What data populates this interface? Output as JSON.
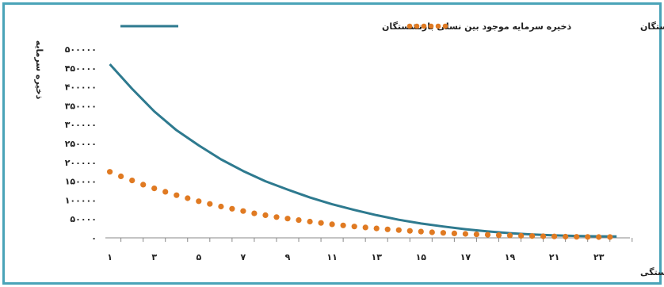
{
  "chart_data": {
    "type": "line",
    "title": "",
    "xlabel": "مدت بازنشستگی",
    "ylabel": "ذخیره سرمایه",
    "x": [
      1,
      2,
      3,
      4,
      5,
      6,
      7,
      8,
      9,
      10,
      11,
      12,
      13,
      14,
      15,
      16,
      17,
      18,
      19,
      20,
      21,
      22,
      23,
      24
    ],
    "x_tick_labels": [
      "۱",
      "۳",
      "۵",
      "۷",
      "۹",
      "۱۱",
      "۱۳",
      "۱۵",
      "۱۷",
      "۱۹",
      "۲۱",
      "۲۳"
    ],
    "x_tick_values": [
      1,
      3,
      5,
      7,
      9,
      11,
      13,
      15,
      17,
      19,
      21,
      23
    ],
    "ylim": [
      0,
      500000
    ],
    "y_tick_values": [
      0,
      50000,
      100000,
      150000,
      200000,
      250000,
      300000,
      350000,
      400000,
      450000,
      500000
    ],
    "y_tick_labels": [
      "۰",
      "۵۰۰۰۰",
      "۱۰۰۰۰۰",
      "۱۵۰۰۰۰",
      "۲۰۰۰۰۰",
      "۲۵۰۰۰۰",
      "۳۰۰۰۰۰",
      "۳۵۰۰۰۰",
      "۴۰۰۰۰۰",
      "۴۵۰۰۰۰",
      "۵۰۰۰۰۰"
    ],
    "grid": false,
    "legend_position": "top",
    "series": [
      {
        "name": "ذخیره سرمایه موجود بین نسلی بازنشستگان",
        "style": "solid",
        "color": "#2e7a8f",
        "x": [
          1,
          2,
          3,
          4,
          5,
          6,
          7,
          8,
          9,
          10,
          11,
          12,
          13,
          14,
          15,
          16,
          17,
          18,
          19,
          20,
          21,
          22,
          23,
          23.8
        ],
        "values": [
          460000,
          395000,
          335000,
          285000,
          245000,
          208000,
          177000,
          150000,
          128000,
          107000,
          89000,
          74000,
          60000,
          48000,
          38000,
          30000,
          23000,
          17000,
          12500,
          9000,
          6500,
          5000,
          4000,
          3500
        ]
      },
      {
        "name": "ذخیره سرمایه بهینه بین نسلی بازنشستگان",
        "style": "dotted",
        "color": "#e07a22",
        "x": [
          1,
          1.5,
          2,
          2.5,
          3,
          3.5,
          4,
          4.5,
          5,
          5.5,
          6,
          6.5,
          7,
          7.5,
          8,
          8.5,
          9,
          9.5,
          10,
          10.5,
          11,
          11.5,
          12,
          12.5,
          13,
          13.5,
          14,
          14.5,
          15,
          15.5,
          16,
          16.5,
          17,
          17.5,
          18,
          18.5,
          19,
          19.5,
          20,
          20.5,
          21,
          21.5,
          22,
          22.5,
          23,
          23.5
        ],
        "values": [
          175000,
          163000,
          152000,
          141000,
          131000,
          122000,
          113000,
          105000,
          97000,
          90000,
          83000,
          77000,
          71000,
          65000,
          60000,
          55000,
          51000,
          47000,
          43000,
          39500,
          36000,
          33000,
          30000,
          27500,
          25000,
          22500,
          20500,
          18500,
          16500,
          14800,
          13200,
          11800,
          10500,
          9300,
          8200,
          7200,
          6300,
          5500,
          4800,
          4200,
          3700,
          3200,
          2800,
          2500,
          2200,
          2000
        ]
      }
    ]
  }
}
